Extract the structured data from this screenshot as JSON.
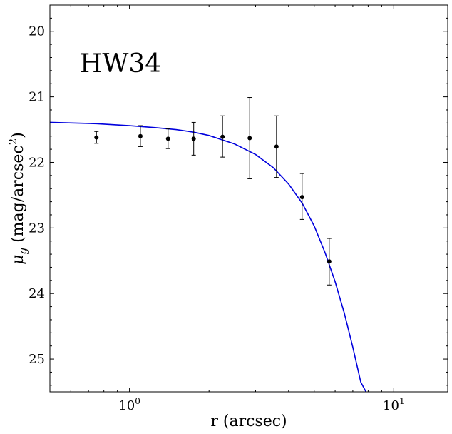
{
  "chart_data": {
    "type": "scatter",
    "annotation": "HW34",
    "xlabel": "r (arcsec)",
    "ylabel_base": "μ",
    "ylabel_sub": "g",
    "ylabel_unit_start": " (mag/arcsec",
    "ylabel_unit_sup": "2",
    "ylabel_unit_end": ")",
    "x_scale": "log",
    "xlim": [
      0.5,
      16
    ],
    "ylim": [
      25.5,
      19.6
    ],
    "y_inverted": true,
    "xticks_major": [
      {
        "value": 1,
        "base": "10",
        "exp": "0"
      },
      {
        "value": 10,
        "base": "10",
        "exp": "1"
      }
    ],
    "yticks": [
      {
        "value": 20,
        "label": "20"
      },
      {
        "value": 21,
        "label": "21"
      },
      {
        "value": 22,
        "label": "22"
      },
      {
        "value": 23,
        "label": "23"
      },
      {
        "value": 24,
        "label": "24"
      },
      {
        "value": 25,
        "label": "25"
      }
    ],
    "points": [
      {
        "x": 0.75,
        "y": 21.62,
        "y_low": 21.53,
        "y_high": 21.71
      },
      {
        "x": 1.1,
        "y": 21.6,
        "y_low": 21.44,
        "y_high": 21.76
      },
      {
        "x": 1.4,
        "y": 21.64,
        "y_low": 21.49,
        "y_high": 21.79
      },
      {
        "x": 1.75,
        "y": 21.64,
        "y_low": 21.39,
        "y_high": 21.89
      },
      {
        "x": 2.25,
        "y": 21.61,
        "y_low": 21.29,
        "y_high": 21.92
      },
      {
        "x": 2.85,
        "y": 21.63,
        "y_low": 21.01,
        "y_high": 22.25
      },
      {
        "x": 3.6,
        "y": 21.76,
        "y_low": 21.29,
        "y_high": 22.23
      },
      {
        "x": 4.5,
        "y": 22.53,
        "y_low": 22.17,
        "y_high": 22.87
      },
      {
        "x": 5.7,
        "y": 23.51,
        "y_low": 23.16,
        "y_high": 23.87
      }
    ],
    "model_curve": {
      "color": "#0000dd",
      "x": [
        0.5,
        0.75,
        1.0,
        1.25,
        1.5,
        1.75,
        2.0,
        2.5,
        3.0,
        3.5,
        4.0,
        4.5,
        5.0,
        5.5,
        6.0,
        6.5,
        7.0,
        7.5,
        7.85
      ],
      "y": [
        21.39,
        21.41,
        21.44,
        21.47,
        21.5,
        21.54,
        21.59,
        21.72,
        21.88,
        22.08,
        22.33,
        22.62,
        22.97,
        23.38,
        23.82,
        24.3,
        24.82,
        25.35,
        25.5
      ]
    },
    "marker_color": "#000000",
    "grid": false,
    "legend": "none"
  }
}
